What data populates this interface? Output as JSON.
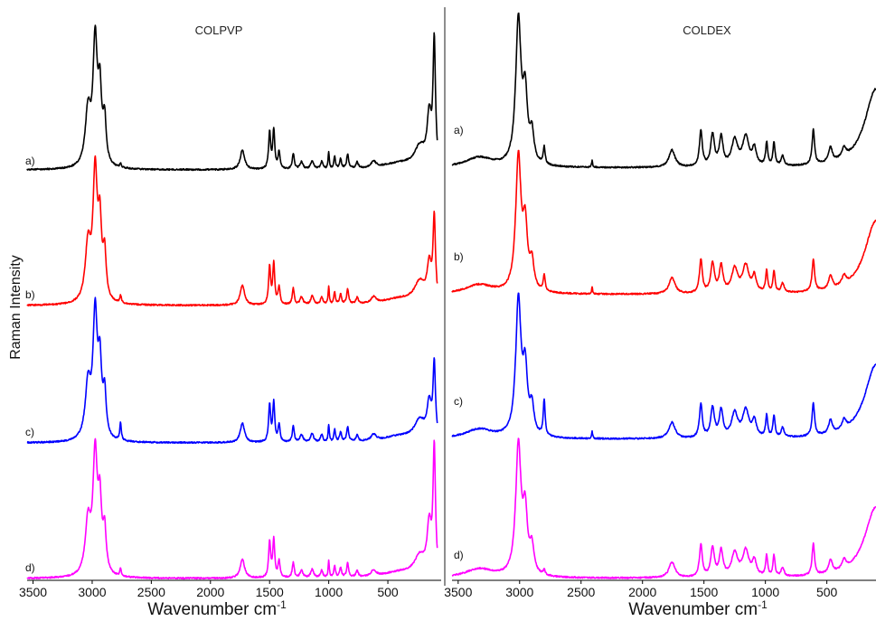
{
  "chart_data": {
    "type": "line",
    "ylabel": "Raman Intensity",
    "trace_labels": [
      "a)",
      "b)",
      "c)",
      "d)"
    ],
    "series_colors": [
      "#000000",
      "#ff0000",
      "#0000ff",
      "#ff00ff"
    ],
    "panels": [
      {
        "title": "COLPVP",
        "xlabel": "Wavenumber cm",
        "xlabel_sup": "-1",
        "xlim": [
          3550,
          80
        ],
        "xticks": [
          3500,
          3000,
          2500,
          2000,
          1500,
          1000,
          500
        ],
        "tick_labels": [
          "3500",
          "3000",
          "2500",
          "2000",
          "1500",
          "1000",
          "500"
        ],
        "grid": false,
        "peaks": [
          [
            3035,
            28,
            0.45
          ],
          [
            2975,
            22,
            1.0
          ],
          [
            2935,
            18,
            0.55
          ],
          [
            2895,
            16,
            0.35
          ],
          [
            2760,
            8,
            0.06
          ],
          [
            1730,
            22,
            0.16
          ],
          [
            1500,
            10,
            0.3
          ],
          [
            1465,
            10,
            0.32
          ],
          [
            1420,
            10,
            0.14
          ],
          [
            1300,
            10,
            0.13
          ],
          [
            1230,
            15,
            0.06
          ],
          [
            1140,
            15,
            0.07
          ],
          [
            1060,
            12,
            0.06
          ],
          [
            1000,
            6,
            0.14
          ],
          [
            950,
            8,
            0.1
          ],
          [
            900,
            10,
            0.08
          ],
          [
            840,
            10,
            0.12
          ],
          [
            760,
            12,
            0.05
          ],
          [
            620,
            25,
            0.05
          ],
          [
            400,
            180,
            0.05
          ],
          [
            230,
            55,
            0.16
          ],
          [
            150,
            22,
            0.4
          ],
          [
            108,
            12,
            1.0
          ]
        ],
        "series": [
          {
            "label": "a)",
            "color": "#000000",
            "scale": 1.0,
            "peak_mult": {
              "2760": 0.5
            }
          },
          {
            "label": "b)",
            "color": "#ff0000",
            "scale": 1.0,
            "peak_mult": {
              "108": 0.65,
              "150": 0.7
            }
          },
          {
            "label": "c)",
            "color": "#0000ff",
            "scale": 1.0,
            "peak_mult": {
              "2760": 2.4,
              "108": 0.6,
              "150": 0.7
            }
          },
          {
            "label": "d)",
            "color": "#ff00ff",
            "scale": 1.0,
            "peak_mult": {
              "108": 1.05
            }
          }
        ]
      },
      {
        "title": "COLDEX",
        "xlabel": "Wavenumber cm",
        "xlabel_sup": "-1",
        "xlim": [
          3550,
          100
        ],
        "xticks": [
          3500,
          3000,
          2500,
          2000,
          1500,
          1000,
          500
        ],
        "tick_labels": [
          "3500",
          "3000",
          "2500",
          "2000",
          "1500",
          "1000",
          "500"
        ],
        "grid": false,
        "peaks": [
          [
            3330,
            140,
            0.07
          ],
          [
            3010,
            26,
            1.0
          ],
          [
            2955,
            22,
            0.45
          ],
          [
            2900,
            20,
            0.2
          ],
          [
            2800,
            9,
            0.12
          ],
          [
            2410,
            5,
            0.05
          ],
          [
            1760,
            30,
            0.12
          ],
          [
            1525,
            14,
            0.25
          ],
          [
            1430,
            18,
            0.22
          ],
          [
            1360,
            18,
            0.2
          ],
          [
            1250,
            30,
            0.18
          ],
          [
            1160,
            30,
            0.2
          ],
          [
            1090,
            20,
            0.12
          ],
          [
            990,
            10,
            0.16
          ],
          [
            930,
            10,
            0.16
          ],
          [
            860,
            14,
            0.07
          ],
          [
            610,
            12,
            0.24
          ],
          [
            470,
            18,
            0.1
          ],
          [
            360,
            20,
            0.07
          ],
          [
            100,
            110,
            0.55
          ]
        ],
        "series": [
          {
            "label": "a)",
            "color": "#000000",
            "scale": 1.0,
            "peak_mult": {}
          },
          {
            "label": "b)",
            "color": "#ff0000",
            "scale": 1.0,
            "peak_mult": {}
          },
          {
            "label": "c)",
            "color": "#0000ff",
            "scale": 1.0,
            "peak_mult": {
              "2800": 2.2
            }
          },
          {
            "label": "d)",
            "color": "#ff00ff",
            "scale": 1.0,
            "peak_mult": {
              "2800": 0.3,
              "2410": 0.0
            }
          }
        ]
      }
    ]
  }
}
